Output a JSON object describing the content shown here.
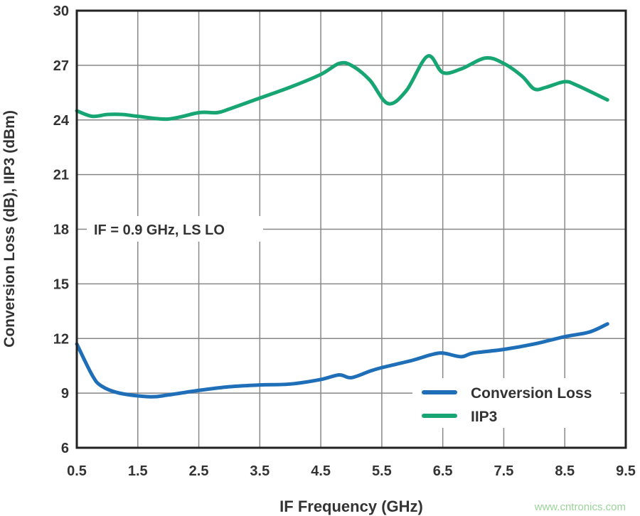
{
  "chart_data": {
    "type": "line",
    "title": "",
    "xlabel": "IF Frequency (GHz)",
    "ylabel": "Conversion Loss (dB), IIP3 (dBm)",
    "xlim": [
      0.5,
      9.5
    ],
    "ylim": [
      6,
      30
    ],
    "xticks": [
      "0.5",
      "1.5",
      "2.5",
      "3.5",
      "4.5",
      "5.5",
      "6.5",
      "7.5",
      "8.5",
      "9.5"
    ],
    "yticks": [
      "6",
      "9",
      "12",
      "15",
      "18",
      "21",
      "24",
      "27",
      "30"
    ],
    "grid": true,
    "legend_position": "bottom-right",
    "annotation": "IF = 0.9 GHz, LS LO",
    "series": [
      {
        "name": "Conversion Loss",
        "color": "#1f6fb8",
        "x": [
          0.5,
          0.75,
          0.9,
          1.2,
          1.7,
          2.0,
          2.5,
          3.0,
          3.5,
          4.0,
          4.5,
          4.8,
          5.0,
          5.3,
          5.5,
          6.0,
          6.3,
          6.5,
          6.8,
          7.0,
          7.5,
          8.0,
          8.5,
          8.9,
          9.2
        ],
        "y": [
          11.7,
          10.0,
          9.4,
          9.0,
          8.8,
          8.9,
          9.15,
          9.35,
          9.45,
          9.5,
          9.75,
          10.0,
          9.85,
          10.2,
          10.4,
          10.8,
          11.1,
          11.2,
          11.0,
          11.2,
          11.4,
          11.7,
          12.1,
          12.35,
          12.8
        ]
      },
      {
        "name": "IIP3",
        "color": "#17a673",
        "x": [
          0.5,
          0.75,
          1.0,
          1.25,
          1.5,
          2.0,
          2.5,
          2.8,
          3.0,
          3.5,
          4.0,
          4.5,
          4.8,
          5.0,
          5.3,
          5.6,
          5.9,
          6.25,
          6.5,
          6.8,
          7.2,
          7.5,
          7.8,
          8.0,
          8.2,
          8.5,
          8.7,
          9.2
        ],
        "y": [
          24.5,
          24.2,
          24.3,
          24.3,
          24.2,
          24.05,
          24.4,
          24.4,
          24.6,
          25.2,
          25.8,
          26.5,
          27.1,
          27.0,
          26.2,
          24.9,
          25.6,
          27.5,
          26.6,
          26.8,
          27.4,
          27.1,
          26.4,
          25.7,
          25.8,
          26.1,
          25.9,
          25.1
        ]
      }
    ]
  },
  "watermark": "www.cntronics.com"
}
